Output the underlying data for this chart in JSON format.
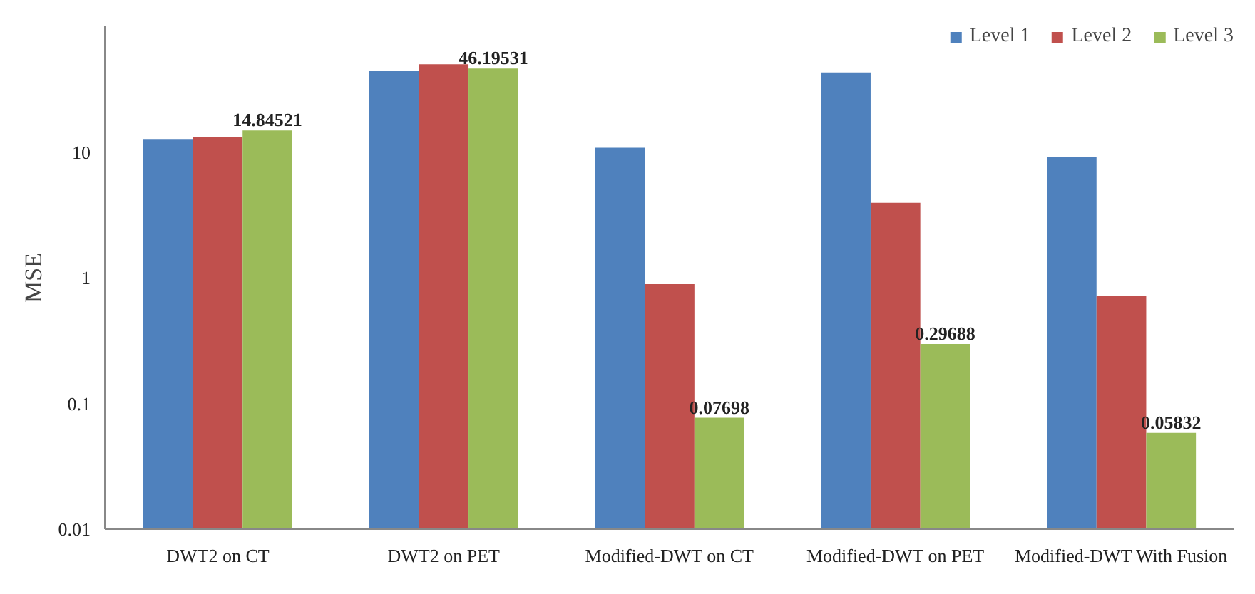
{
  "chart_data": {
    "type": "bar",
    "ylabel": "MSE",
    "categories": [
      "DWT2 on CT",
      "DWT2 on PET",
      "Modified-DWT on CT",
      "Modified-DWT on PET",
      "Modified-DWT With Fusion"
    ],
    "series": [
      {
        "name": "Level 1",
        "color": "#4f81bd",
        "values": [
          12.7,
          44,
          10.8,
          43,
          9.1
        ]
      },
      {
        "name": "Level 2",
        "color": "#c0504d",
        "values": [
          13.1,
          50,
          0.89,
          3.95,
          0.72
        ]
      },
      {
        "name": "Level 3",
        "color": "#9bbb59",
        "values": [
          14.84521,
          46.19531,
          0.07698,
          0.29688,
          0.05832
        ],
        "value_labels": [
          "14.84521",
          "46.19531",
          "0.07698",
          "0.29688",
          "0.05832"
        ]
      }
    ],
    "log": "y",
    "ylim": [
      0.01,
      100
    ],
    "yticks": [
      0.01,
      0.1,
      1,
      10
    ],
    "grid": false,
    "legend": "top right"
  }
}
